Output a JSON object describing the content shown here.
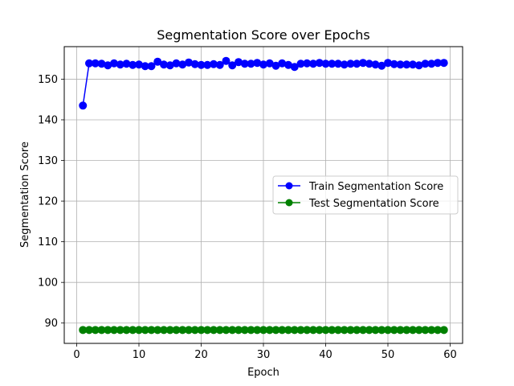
{
  "chart_data": {
    "type": "line",
    "title": "Segmentation Score over Epochs",
    "xlabel": "Epoch",
    "ylabel": "Segmentation Score",
    "xlim": [
      -2,
      62
    ],
    "ylim": [
      85,
      158
    ],
    "x_ticks": [
      0,
      10,
      20,
      30,
      40,
      50,
      60
    ],
    "y_ticks": [
      90,
      100,
      110,
      120,
      130,
      140,
      150
    ],
    "grid": true,
    "legend_position": "center-right",
    "x": [
      1,
      2,
      3,
      4,
      5,
      6,
      7,
      8,
      9,
      10,
      11,
      12,
      13,
      14,
      15,
      16,
      17,
      18,
      19,
      20,
      21,
      22,
      23,
      24,
      25,
      26,
      27,
      28,
      29,
      30,
      31,
      32,
      33,
      34,
      35,
      36,
      37,
      38,
      39,
      40,
      41,
      42,
      43,
      44,
      45,
      46,
      47,
      48,
      49,
      50,
      51,
      52,
      53,
      54,
      55,
      56,
      57,
      58,
      59
    ],
    "series": [
      {
        "name": "Train Segmentation Score",
        "color": "#0000ff",
        "values": [
          143.5,
          153.9,
          153.9,
          153.8,
          153.4,
          153.9,
          153.6,
          153.8,
          153.5,
          153.6,
          153.2,
          153.2,
          154.3,
          153.6,
          153.4,
          153.9,
          153.6,
          154.1,
          153.7,
          153.5,
          153.5,
          153.7,
          153.5,
          154.5,
          153.4,
          154.2,
          153.8,
          153.8,
          154.0,
          153.6,
          153.9,
          153.3,
          153.9,
          153.5,
          153.0,
          153.8,
          153.9,
          153.8,
          154.0,
          153.8,
          153.8,
          153.8,
          153.6,
          153.8,
          153.8,
          154.0,
          153.8,
          153.6,
          153.3,
          154.0,
          153.7,
          153.6,
          153.6,
          153.6,
          153.4,
          153.8,
          153.8,
          154.0,
          154.0
        ]
      },
      {
        "name": "Test Segmentation Score",
        "color": "#008000",
        "values": [
          88.3,
          88.3,
          88.3,
          88.3,
          88.3,
          88.3,
          88.3,
          88.3,
          88.3,
          88.3,
          88.3,
          88.3,
          88.3,
          88.3,
          88.3,
          88.3,
          88.3,
          88.3,
          88.3,
          88.3,
          88.3,
          88.3,
          88.3,
          88.3,
          88.3,
          88.3,
          88.3,
          88.3,
          88.3,
          88.3,
          88.3,
          88.3,
          88.3,
          88.3,
          88.3,
          88.3,
          88.3,
          88.3,
          88.3,
          88.3,
          88.3,
          88.3,
          88.3,
          88.3,
          88.3,
          88.3,
          88.3,
          88.3,
          88.3,
          88.3,
          88.3,
          88.3,
          88.3,
          88.3,
          88.3,
          88.3,
          88.3,
          88.3,
          88.3
        ]
      }
    ]
  }
}
